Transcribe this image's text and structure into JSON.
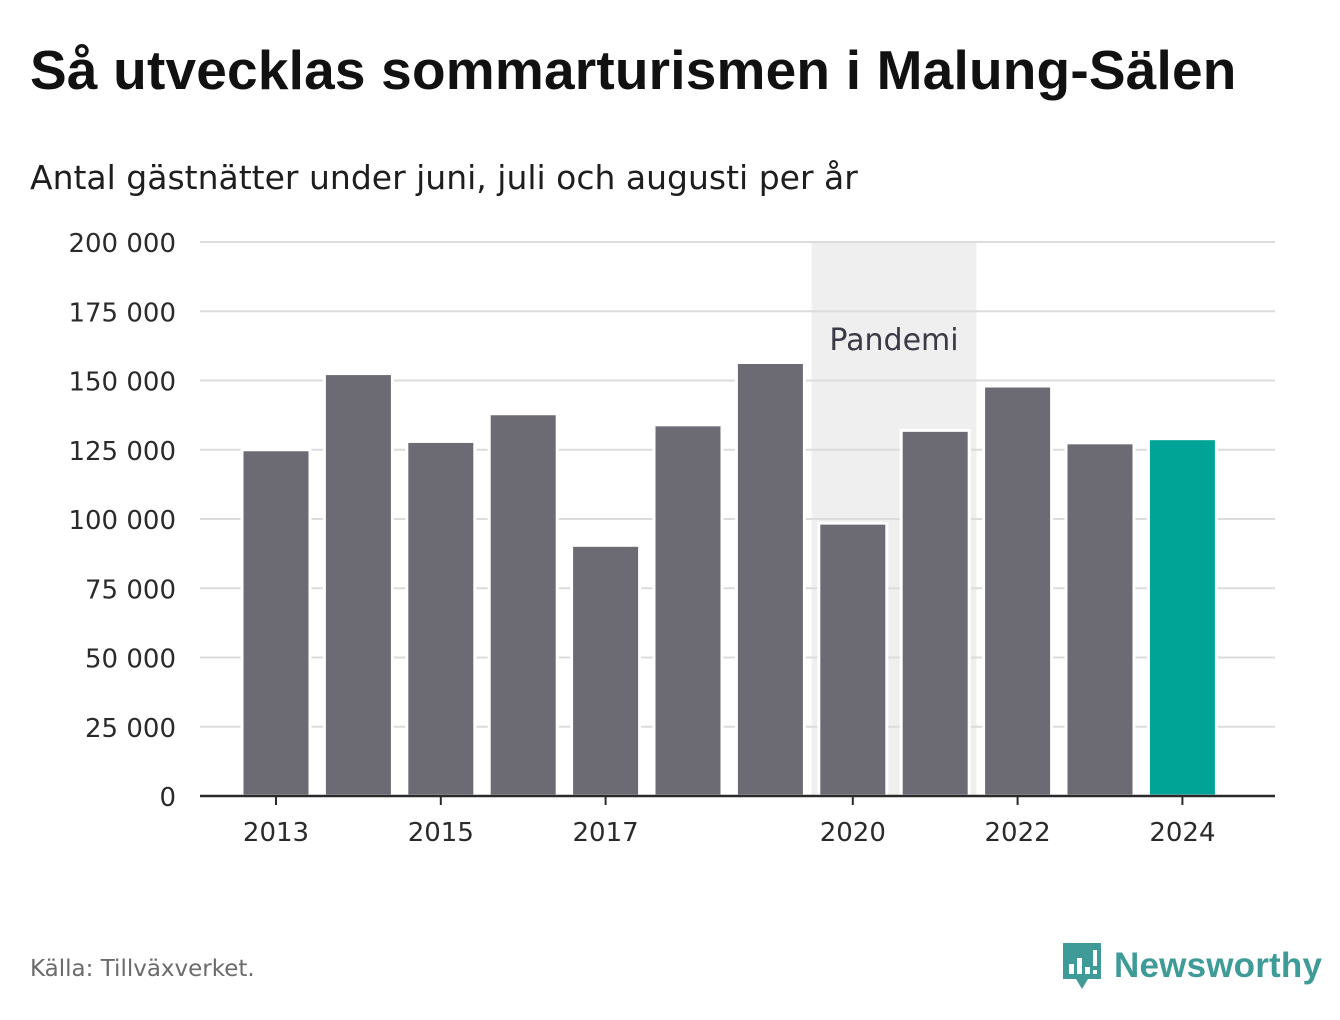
{
  "title": "Så utvecklas sommarturismen i Malung-Sälen",
  "subtitle": "Antal gästnätter under juni, juli och augusti per år",
  "source": "Källa: Tillväxverket.",
  "brand": {
    "name": "Newsworthy",
    "logo_icon": "bar-chart-speech-bubble-icon"
  },
  "colors": {
    "bar": "#6c6b74",
    "highlight": "#00a497",
    "pandemic_band": "#efefef",
    "grid": "#dcdcdc",
    "brand": "#3f9b97"
  },
  "chart_data": {
    "type": "bar",
    "categories": [
      "2013",
      "2014",
      "2015",
      "2016",
      "2017",
      "2018",
      "2019",
      "2020",
      "2021",
      "2022",
      "2023",
      "2024"
    ],
    "values": [
      125000,
      152500,
      128000,
      138000,
      90500,
      134000,
      156500,
      98500,
      132000,
      148000,
      127500,
      129000
    ],
    "highlight_category": "2024",
    "x_tick_labels": [
      "2013",
      "2015",
      "2017",
      "2020",
      "2022",
      "2024"
    ],
    "y_ticks": [
      0,
      25000,
      50000,
      75000,
      100000,
      125000,
      150000,
      175000,
      200000
    ],
    "y_tick_labels": [
      "0",
      "25 000",
      "50 000",
      "75 000",
      "100 000",
      "125 000",
      "150 000",
      "175 000",
      "200 000"
    ],
    "ylim": [
      0,
      200000
    ],
    "grid": true,
    "annotation": {
      "label": "Pandemi",
      "from": "2020",
      "to": "2021"
    }
  }
}
